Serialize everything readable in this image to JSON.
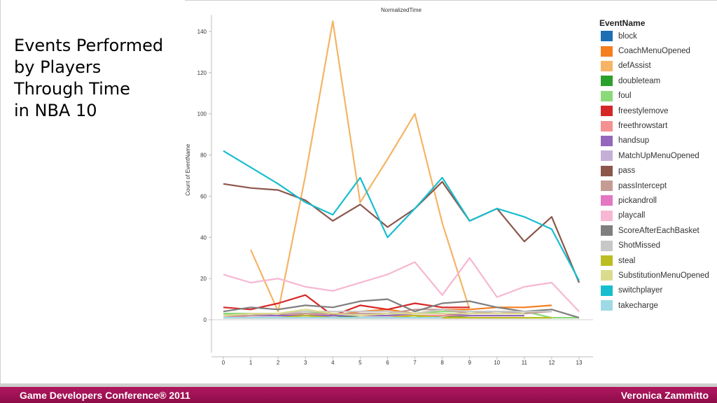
{
  "slide": {
    "title": "Events Performed\nby Players\nThrough Time\nin NBA 10",
    "footer_left": "Game Developers Conference® 2011",
    "footer_right": "Veronica Zammitto"
  },
  "chart_data": {
    "type": "line",
    "title": "NormalizedTime",
    "xlabel": "",
    "ylabel": "Count of EventName",
    "x": [
      0,
      1,
      2,
      3,
      4,
      5,
      6,
      7,
      8,
      9,
      10,
      11,
      12,
      13
    ],
    "xlim": [
      0,
      13
    ],
    "ylim": [
      -16,
      148
    ],
    "yticks": [
      0,
      20,
      40,
      60,
      80,
      100,
      120,
      140
    ],
    "grid": false,
    "legend_title": "EventName",
    "legend_position": "right",
    "series": [
      {
        "name": "block",
        "color": "#1f6fb4",
        "values": [
          null,
          1,
          1,
          1,
          1,
          1,
          1,
          1,
          1,
          1,
          1,
          null,
          null,
          null
        ]
      },
      {
        "name": "CoachMenuOpened",
        "color": "#f57e1f",
        "values": [
          null,
          null,
          2,
          3,
          2,
          4,
          5,
          3,
          5,
          5,
          6,
          6,
          7,
          null
        ]
      },
      {
        "name": "defAssist",
        "color": "#f5b466",
        "values": [
          null,
          34,
          4,
          70,
          145,
          57,
          78,
          100,
          47,
          5,
          null,
          null,
          null,
          null
        ]
      },
      {
        "name": "doubleteam",
        "color": "#2ca02c",
        "values": [
          3,
          3,
          3,
          2,
          2,
          1,
          1,
          1,
          2,
          1,
          1,
          1,
          1,
          null
        ]
      },
      {
        "name": "foul",
        "color": "#8cd97a",
        "values": [
          3,
          3,
          3,
          4,
          3,
          2,
          2,
          3,
          4,
          4,
          4,
          4,
          1,
          1
        ]
      },
      {
        "name": "freestylemove",
        "color": "#d62728",
        "values": [
          6,
          5,
          8,
          12,
          2,
          7,
          5,
          8,
          6,
          6,
          null,
          null,
          null,
          null
        ]
      },
      {
        "name": "freethrowstart",
        "color": "#f49191",
        "values": [
          1,
          2,
          2,
          3,
          2,
          2,
          2,
          2,
          2,
          2,
          null,
          null,
          null,
          null
        ]
      },
      {
        "name": "handsup",
        "color": "#9467bd",
        "values": [
          2,
          2,
          2,
          2,
          2,
          2,
          2,
          3,
          3,
          2,
          2,
          2,
          null,
          null
        ]
      },
      {
        "name": "MatchUpMenuOpened",
        "color": "#c5b0d5",
        "values": [
          1,
          1,
          1,
          1,
          1,
          1,
          1,
          1,
          1,
          1,
          1,
          1,
          null,
          null
        ]
      },
      {
        "name": "pass",
        "color": "#8c564b",
        "values": [
          66,
          64,
          63,
          58,
          48,
          56,
          45,
          54,
          67,
          48,
          54,
          38,
          50,
          18
        ]
      },
      {
        "name": "passIntercept",
        "color": "#c49c94",
        "values": [
          2,
          2,
          3,
          3,
          3,
          3,
          3,
          5,
          5,
          3,
          4,
          3,
          4,
          null
        ]
      },
      {
        "name": "pickandroll",
        "color": "#e377c2",
        "values": [
          1,
          1,
          1,
          1,
          1,
          1,
          1,
          1,
          1,
          1,
          1,
          1,
          null,
          null
        ]
      },
      {
        "name": "playcall",
        "color": "#f7b6d2",
        "values": [
          22,
          18,
          20,
          16,
          14,
          18,
          22,
          28,
          12,
          30,
          11,
          16,
          18,
          4
        ]
      },
      {
        "name": "ScoreAfterEachBasket",
        "color": "#7f7f7f",
        "values": [
          4,
          6,
          5,
          7,
          6,
          9,
          10,
          4,
          8,
          9,
          6,
          4,
          5,
          1
        ]
      },
      {
        "name": "ShotMissed",
        "color": "#c7c7c7",
        "values": [
          2,
          3,
          3,
          4,
          4,
          4,
          4,
          3,
          5,
          4,
          4,
          4,
          4,
          null
        ]
      },
      {
        "name": "steal",
        "color": "#bcbd22",
        "values": [
          1,
          1,
          1,
          2,
          1,
          1,
          1,
          2,
          1,
          1,
          1,
          1,
          1,
          null
        ]
      },
      {
        "name": "SubstitutionMenuOpened",
        "color": "#dbdb8d",
        "values": [
          2,
          3,
          3,
          5,
          3,
          2,
          3,
          3,
          3,
          3,
          3,
          3,
          null,
          null
        ]
      },
      {
        "name": "switchplayer",
        "color": "#17becf",
        "values": [
          82,
          74,
          66,
          57,
          51,
          69,
          40,
          54,
          69,
          48,
          54,
          50,
          44,
          19
        ]
      },
      {
        "name": "takecharge",
        "color": "#9edae5",
        "values": [
          1,
          1,
          1,
          1,
          1,
          1,
          1,
          1,
          1,
          null,
          null,
          null,
          null,
          null
        ]
      }
    ]
  }
}
